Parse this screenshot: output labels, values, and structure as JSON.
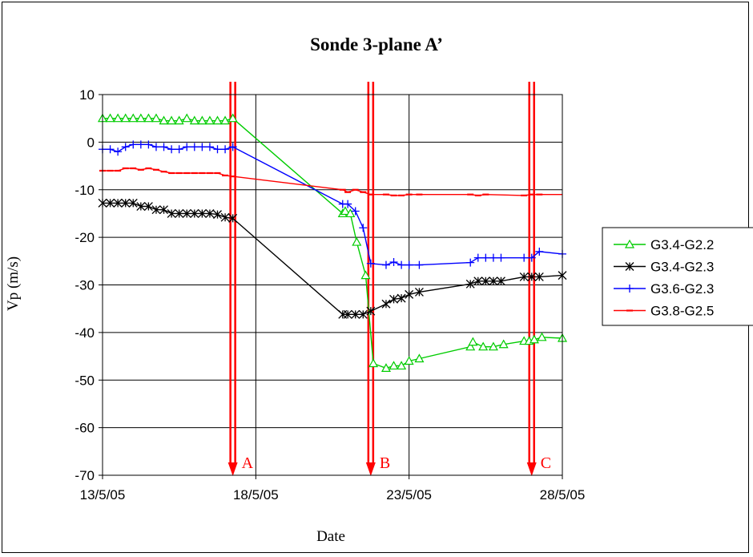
{
  "chart_data": {
    "type": "line",
    "title": "Sonde 3-plane A’",
    "xlabel": "Date",
    "ylabel": "Vp (m/s)",
    "x_ticks": [
      "13/5/05",
      "18/5/05",
      "23/5/05",
      "28/5/05"
    ],
    "y_ticks": [
      10,
      0,
      -10,
      -20,
      -30,
      -40,
      -50,
      -60,
      -70
    ],
    "xlim": [
      "2005-05-13",
      "2005-05-28"
    ],
    "ylim": [
      -70,
      10
    ],
    "grid": "vertical and horizontal major gridlines",
    "legend_position": "right",
    "series": [
      {
        "name": "G3.4-G2.2",
        "color": "#00cc00",
        "marker": "triangle",
        "points": [
          [
            "2005-05-13 00:00",
            5
          ],
          [
            "2005-05-13 06:00",
            5
          ],
          [
            "2005-05-13 12:00",
            5
          ],
          [
            "2005-05-13 18:00",
            5
          ],
          [
            "2005-05-14 00:00",
            5
          ],
          [
            "2005-05-14 06:00",
            5
          ],
          [
            "2005-05-14 12:00",
            5
          ],
          [
            "2005-05-14 18:00",
            5
          ],
          [
            "2005-05-15 00:00",
            4.5
          ],
          [
            "2005-05-15 06:00",
            4.5
          ],
          [
            "2005-05-15 12:00",
            4.5
          ],
          [
            "2005-05-15 18:00",
            5
          ],
          [
            "2005-05-16 00:00",
            4.5
          ],
          [
            "2005-05-16 06:00",
            4.5
          ],
          [
            "2005-05-16 12:00",
            4.5
          ],
          [
            "2005-05-16 18:00",
            4.5
          ],
          [
            "2005-05-17 00:00",
            4.5
          ],
          [
            "2005-05-17 06:00",
            5
          ],
          [
            "2005-05-20 20:00",
            -15
          ],
          [
            "2005-05-20 22:00",
            -14.5
          ],
          [
            "2005-05-21 02:00",
            -15
          ],
          [
            "2005-05-21 07:00",
            -21
          ],
          [
            "2005-05-21 14:00",
            -28
          ],
          [
            "2005-05-21 20:00",
            -46.5
          ],
          [
            "2005-05-22 06:00",
            -47.5
          ],
          [
            "2005-05-22 12:00",
            -47
          ],
          [
            "2005-05-22 18:00",
            -47
          ],
          [
            "2005-05-23 00:00",
            -46
          ],
          [
            "2005-05-23 08:00",
            -45.5
          ],
          [
            "2005-05-25 00:00",
            -43
          ],
          [
            "2005-05-25 02:00",
            -42
          ],
          [
            "2005-05-25 10:00",
            -43
          ],
          [
            "2005-05-25 18:00",
            -43
          ],
          [
            "2005-05-26 02:00",
            -42.5
          ],
          [
            "2005-05-26 18:00",
            -41.8
          ],
          [
            "2005-05-26 22:00",
            -41.8
          ],
          [
            "2005-05-27 02:00",
            -41.5
          ],
          [
            "2005-05-27 08:00",
            -41
          ],
          [
            "2005-05-28 00:00",
            -41.2
          ]
        ]
      },
      {
        "name": "G3.4-G2.3",
        "color": "#000000",
        "marker": "asterisk",
        "points": [
          [
            "2005-05-13 00:00",
            -12.8
          ],
          [
            "2005-05-13 06:00",
            -12.8
          ],
          [
            "2005-05-13 12:00",
            -12.8
          ],
          [
            "2005-05-13 18:00",
            -12.8
          ],
          [
            "2005-05-14 00:00",
            -12.8
          ],
          [
            "2005-05-14 06:00",
            -13.5
          ],
          [
            "2005-05-14 12:00",
            -13.5
          ],
          [
            "2005-05-14 18:00",
            -14.2
          ],
          [
            "2005-05-15 00:00",
            -14.2
          ],
          [
            "2005-05-15 06:00",
            -15
          ],
          [
            "2005-05-15 12:00",
            -15
          ],
          [
            "2005-05-15 18:00",
            -15
          ],
          [
            "2005-05-16 00:00",
            -15
          ],
          [
            "2005-05-16 06:00",
            -15
          ],
          [
            "2005-05-16 12:00",
            -15
          ],
          [
            "2005-05-16 18:00",
            -15.2
          ],
          [
            "2005-05-17 00:00",
            -15.8
          ],
          [
            "2005-05-17 06:00",
            -16
          ],
          [
            "2005-05-20 20:00",
            -36.2
          ],
          [
            "2005-05-21 00:00",
            -36.2
          ],
          [
            "2005-05-21 06:00",
            -36.2
          ],
          [
            "2005-05-21 12:00",
            -36.2
          ],
          [
            "2005-05-21 18:00",
            -35.5
          ],
          [
            "2005-05-22 06:00",
            -34
          ],
          [
            "2005-05-22 12:00",
            -33
          ],
          [
            "2005-05-22 18:00",
            -32.8
          ],
          [
            "2005-05-23 00:00",
            -32
          ],
          [
            "2005-05-23 08:00",
            -31.5
          ],
          [
            "2005-05-25 00:00",
            -29.8
          ],
          [
            "2005-05-25 06:00",
            -29.2
          ],
          [
            "2005-05-25 12:00",
            -29.2
          ],
          [
            "2005-05-25 18:00",
            -29.2
          ],
          [
            "2005-05-26 00:00",
            -29.2
          ],
          [
            "2005-05-26 18:00",
            -28.3
          ],
          [
            "2005-05-27 00:00",
            -28.3
          ],
          [
            "2005-05-27 06:00",
            -28.3
          ],
          [
            "2005-05-28 00:00",
            -28
          ]
        ]
      },
      {
        "name": "G3.6-G2.3",
        "color": "#0000ff",
        "marker": "plus",
        "points": [
          [
            "2005-05-13 00:00",
            -1.5
          ],
          [
            "2005-05-13 06:00",
            -1.5
          ],
          [
            "2005-05-13 12:00",
            -2
          ],
          [
            "2005-05-13 18:00",
            -1
          ],
          [
            "2005-05-14 00:00",
            -0.5
          ],
          [
            "2005-05-14 06:00",
            -0.5
          ],
          [
            "2005-05-14 12:00",
            -0.5
          ],
          [
            "2005-05-14 18:00",
            -1
          ],
          [
            "2005-05-15 00:00",
            -1
          ],
          [
            "2005-05-15 06:00",
            -1.5
          ],
          [
            "2005-05-15 12:00",
            -1.5
          ],
          [
            "2005-05-15 18:00",
            -1
          ],
          [
            "2005-05-16 00:00",
            -1
          ],
          [
            "2005-05-16 06:00",
            -1
          ],
          [
            "2005-05-16 12:00",
            -1
          ],
          [
            "2005-05-16 18:00",
            -1.5
          ],
          [
            "2005-05-17 00:00",
            -1.5
          ],
          [
            "2005-05-17 06:00",
            -1
          ],
          [
            "2005-05-20 20:00",
            -13
          ],
          [
            "2005-05-21 00:00",
            -13
          ],
          [
            "2005-05-21 06:00",
            -14.5
          ],
          [
            "2005-05-21 12:00",
            -18
          ],
          [
            "2005-05-21 18:00",
            -25.5
          ],
          [
            "2005-05-22 06:00",
            -25.8
          ],
          [
            "2005-05-22 12:00",
            -25.2
          ],
          [
            "2005-05-22 18:00",
            -25.8
          ],
          [
            "2005-05-23 00:00",
            -25.8
          ],
          [
            "2005-05-23 08:00",
            -25.8
          ],
          [
            "2005-05-25 00:00",
            -25.3
          ],
          [
            "2005-05-25 06:00",
            -24.3
          ],
          [
            "2005-05-25 12:00",
            -24.3
          ],
          [
            "2005-05-25 18:00",
            -24.3
          ],
          [
            "2005-05-26 00:00",
            -24.3
          ],
          [
            "2005-05-26 18:00",
            -24.3
          ],
          [
            "2005-05-27 00:00",
            -24.3
          ],
          [
            "2005-05-27 06:00",
            -23
          ],
          [
            "2005-05-28 00:00",
            -23.5
          ]
        ]
      },
      {
        "name": "G3.8-G2.5",
        "color": "#ff0000",
        "marker": "dash",
        "points": [
          [
            "2005-05-13 00:00",
            -6
          ],
          [
            "2005-05-13 06:00",
            -6
          ],
          [
            "2005-05-13 12:00",
            -6
          ],
          [
            "2005-05-13 18:00",
            -5.5
          ],
          [
            "2005-05-14 00:00",
            -5.5
          ],
          [
            "2005-05-14 06:00",
            -5.8
          ],
          [
            "2005-05-14 12:00",
            -5.5
          ],
          [
            "2005-05-14 18:00",
            -5.8
          ],
          [
            "2005-05-15 00:00",
            -6.2
          ],
          [
            "2005-05-15 06:00",
            -6.5
          ],
          [
            "2005-05-15 12:00",
            -6.5
          ],
          [
            "2005-05-15 18:00",
            -6.5
          ],
          [
            "2005-05-16 00:00",
            -6.5
          ],
          [
            "2005-05-16 06:00",
            -6.5
          ],
          [
            "2005-05-16 12:00",
            -6.5
          ],
          [
            "2005-05-16 18:00",
            -6.5
          ],
          [
            "2005-05-17 00:00",
            -7
          ],
          [
            "2005-05-17 06:00",
            -7.2
          ],
          [
            "2005-05-20 20:00",
            -10
          ],
          [
            "2005-05-21 00:00",
            -10.5
          ],
          [
            "2005-05-21 06:00",
            -10
          ],
          [
            "2005-05-21 12:00",
            -10.5
          ],
          [
            "2005-05-21 18:00",
            -11
          ],
          [
            "2005-05-22 06:00",
            -11
          ],
          [
            "2005-05-22 12:00",
            -11.2
          ],
          [
            "2005-05-22 18:00",
            -11.2
          ],
          [
            "2005-05-23 00:00",
            -11
          ],
          [
            "2005-05-23 08:00",
            -11
          ],
          [
            "2005-05-25 00:00",
            -11
          ],
          [
            "2005-05-25 06:00",
            -11.2
          ],
          [
            "2005-05-25 12:00",
            -11
          ],
          [
            "2005-05-26 18:00",
            -11.2
          ],
          [
            "2005-05-27 00:00",
            -11
          ],
          [
            "2005-05-27 06:00",
            -11
          ],
          [
            "2005-05-28 00:00",
            -11
          ]
        ]
      }
    ],
    "event_markers": [
      {
        "label": "A",
        "date": "2005-05-17 06:00",
        "color": "#ff0000"
      },
      {
        "label": "B",
        "date": "2005-05-21 18:00",
        "color": "#ff0000"
      },
      {
        "label": "C",
        "date": "2005-05-27 00:00",
        "color": "#ff0000"
      }
    ]
  }
}
